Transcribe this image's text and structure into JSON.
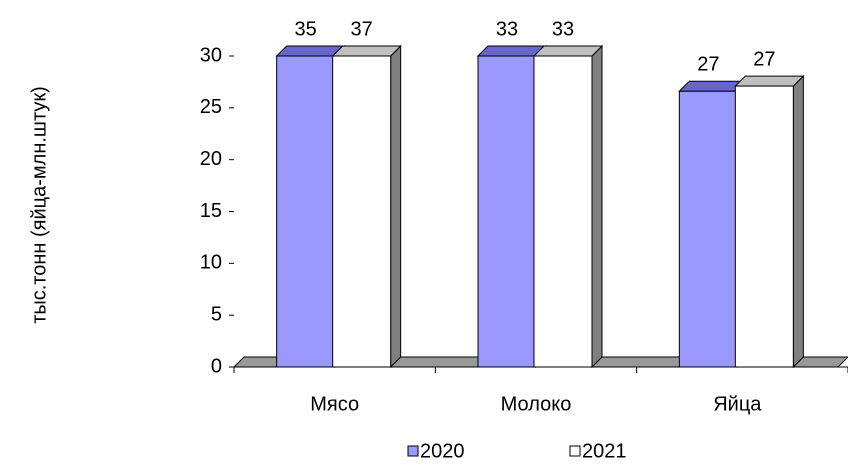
{
  "chart_data": {
    "type": "bar3d",
    "y_label": "тыс.тонн (яйца-млн.штук)",
    "categories": [
      "Мясо",
      "Молоко",
      "Яйца"
    ],
    "series": [
      {
        "name": "2020",
        "color": "#9999ff",
        "values": [
          35,
          33,
          26.6
        ],
        "value_labels": [
          "35",
          "33",
          "27"
        ]
      },
      {
        "name": "2021",
        "color": "#ffffff",
        "values": [
          37,
          33,
          27.1
        ],
        "value_labels": [
          "37",
          "33",
          "27"
        ]
      }
    ],
    "ylim": [
      0,
      30
    ],
    "yticks": [
      0,
      5,
      10,
      15,
      20,
      25,
      30
    ],
    "grid": false,
    "legend": "bottom"
  }
}
